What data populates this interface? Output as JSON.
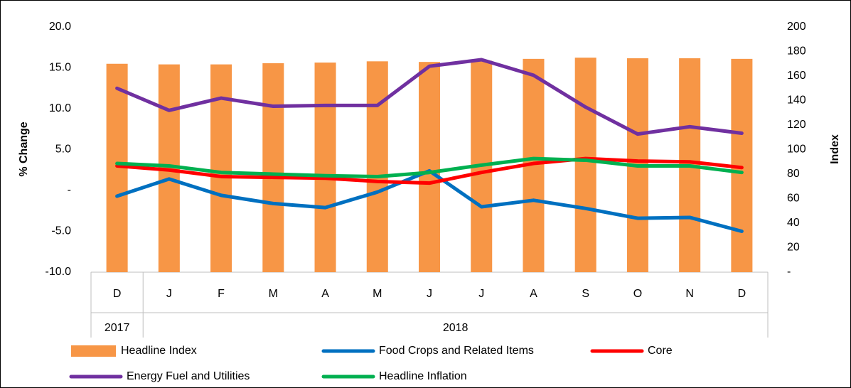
{
  "chart_data": {
    "type": "bar",
    "groups": [
      {
        "label": "2017",
        "categories": [
          "D"
        ]
      },
      {
        "label": "2018",
        "categories": [
          "J",
          "F",
          "M",
          "A",
          "M",
          "J",
          "J",
          "A",
          "S",
          "O",
          "N",
          "D"
        ]
      }
    ],
    "ylabel": "% Change",
    "y2label": "Index",
    "ylim": [
      -10,
      20
    ],
    "yticks": [
      {
        "value": -10,
        "label": "-10.0"
      },
      {
        "value": -5,
        "label": "-5.0"
      },
      {
        "value": 0,
        "label": "-"
      },
      {
        "value": 5,
        "label": "5.0"
      },
      {
        "value": 10,
        "label": "10.0"
      },
      {
        "value": 15,
        "label": "15.0"
      },
      {
        "value": 20,
        "label": "20.0"
      }
    ],
    "y2lim": [
      0,
      200
    ],
    "y2ticks": [
      {
        "value": 0,
        "label": "-"
      },
      20,
      40,
      60,
      80,
      100,
      120,
      140,
      160,
      180,
      200
    ],
    "grid": false,
    "legend": "bottom",
    "series": [
      {
        "name": "Headline Index",
        "type": "bar",
        "axis": "y2",
        "color": "#f79646",
        "values": [
          170,
          169.5,
          169.5,
          170.5,
          171,
          172,
          171.5,
          172.5,
          174,
          175,
          174.5,
          174.5,
          174
        ]
      },
      {
        "name": "Food Crops and Related Items",
        "type": "line",
        "color": "#0070c0",
        "values": [
          -0.7,
          1.4,
          -0.6,
          -1.6,
          -2.1,
          -0.2,
          2.4,
          -2.0,
          -1.2,
          -2.2,
          -3.4,
          -3.3,
          -5.0
        ]
      },
      {
        "name": "Core",
        "type": "line",
        "color": "#ff0000",
        "values": [
          3.0,
          2.5,
          1.7,
          1.6,
          1.5,
          1.1,
          0.9,
          2.2,
          3.3,
          3.9,
          3.6,
          3.5,
          2.8
        ]
      },
      {
        "name": "Energy Fuel and Utilities",
        "type": "line",
        "color": "#7030a0",
        "values": [
          12.5,
          9.8,
          11.3,
          10.3,
          10.4,
          10.4,
          15.2,
          16.0,
          14.1,
          10.2,
          6.9,
          7.8,
          7.0
        ]
      },
      {
        "name": "Headline Inflation",
        "type": "line",
        "color": "#00b050",
        "values": [
          3.3,
          3.0,
          2.2,
          2.0,
          1.8,
          1.7,
          2.2,
          3.1,
          3.9,
          3.7,
          3.0,
          3.0,
          2.2
        ]
      }
    ]
  }
}
